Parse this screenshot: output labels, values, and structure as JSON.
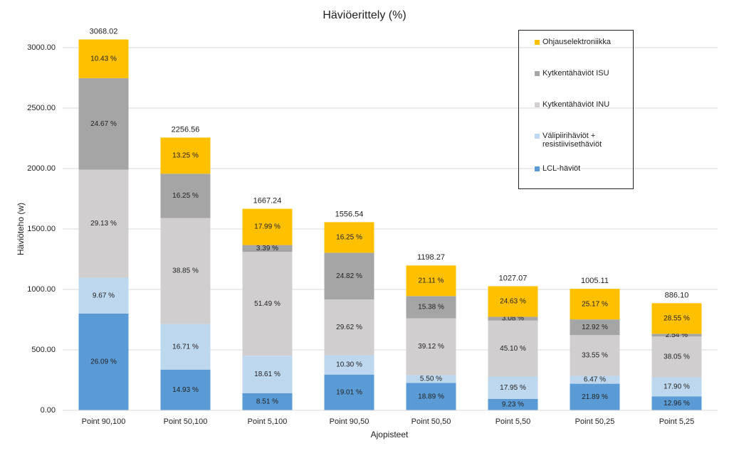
{
  "chart_data": {
    "type": "stacked_bar",
    "title": "Häviöerittely (%)",
    "x_label": "Ajopisteet",
    "y_label": "Häviöteho (w)",
    "categories": [
      "Point 90,100",
      "Point 50,100",
      "Point 5,100",
      "Point 90,50",
      "Point 50,50",
      "Point 5,50",
      "Point 50,25",
      "Point 5,25"
    ],
    "totals": [
      3068.02,
      2256.56,
      1667.24,
      1556.54,
      1198.27,
      1027.07,
      1005.11,
      886.1
    ],
    "total_labels": [
      "3068.02",
      "2256.56",
      "1667.24",
      "1556.54",
      "1198.27",
      "1027.07",
      "1005.11",
      "886.10"
    ],
    "series": [
      {
        "name": "LCL-häviöt",
        "color": "#5b9bd5",
        "values": [
          800.45,
          336.9,
          141.88,
          295.9,
          226.35,
          94.8,
          220.02,
          114.84
        ],
        "labels": [
          "26.09 %",
          "14.93 %",
          "8.51 %",
          "19.01 %",
          "18.89 %",
          "9.23 %",
          "21.89 %",
          "12.96 %"
        ]
      },
      {
        "name": "Välipiirihäviöt + resistiivisethäviöt",
        "color": "#bdd7ee",
        "values": [
          296.68,
          377.07,
          310.27,
          160.32,
          65.9,
          184.36,
          65.03,
          158.61
        ],
        "labels": [
          "9.67 %",
          "16.71 %",
          "18.61 %",
          "10.30 %",
          "5.50 %",
          "17.95 %",
          "6.47 %",
          "17.90 %"
        ]
      },
      {
        "name": "Kytkentähäviöt INU",
        "color": "#d0cece",
        "values": [
          893.71,
          876.67,
          858.46,
          461.05,
          468.76,
          463.21,
          337.21,
          337.16
        ],
        "labels": [
          "29.13 %",
          "38.85 %",
          "51.49 %",
          "29.62 %",
          "39.12 %",
          "45.10 %",
          "33.55 %",
          "38.05 %"
        ]
      },
      {
        "name": "Kytkentähäviöt ISU",
        "color": "#a5a5a5",
        "values": [
          756.88,
          366.69,
          56.52,
          386.33,
          184.29,
          31.63,
          129.86,
          22.51
        ],
        "labels": [
          "24.67 %",
          "16.25 %",
          "3.39 %",
          "24.82 %",
          "15.38 %",
          "3.08 %",
          "12.92 %",
          "2.54 %"
        ]
      },
      {
        "name": "Ohjauselektroniikka",
        "color": "#ffc000",
        "values": [
          320.0,
          298.99,
          299.94,
          252.94,
          252.95,
          252.97,
          252.99,
          252.98
        ],
        "labels": [
          "10.43 %",
          "13.25 %",
          "17.99 %",
          "16.25 %",
          "21.11 %",
          "24.63 %",
          "25.17 %",
          "28.55 %"
        ]
      }
    ],
    "ylim": [
      0,
      3000
    ],
    "yticks": [
      {
        "value": 0,
        "label": "0.00"
      },
      {
        "value": 500,
        "label": "500.00"
      },
      {
        "value": 1000,
        "label": "1000.00"
      },
      {
        "value": 1500,
        "label": "1500.00"
      },
      {
        "value": 2000,
        "label": "2000.00"
      },
      {
        "value": 2500,
        "label": "2500.00"
      },
      {
        "value": 3000,
        "label": "3000.00"
      }
    ],
    "grid": true
  }
}
